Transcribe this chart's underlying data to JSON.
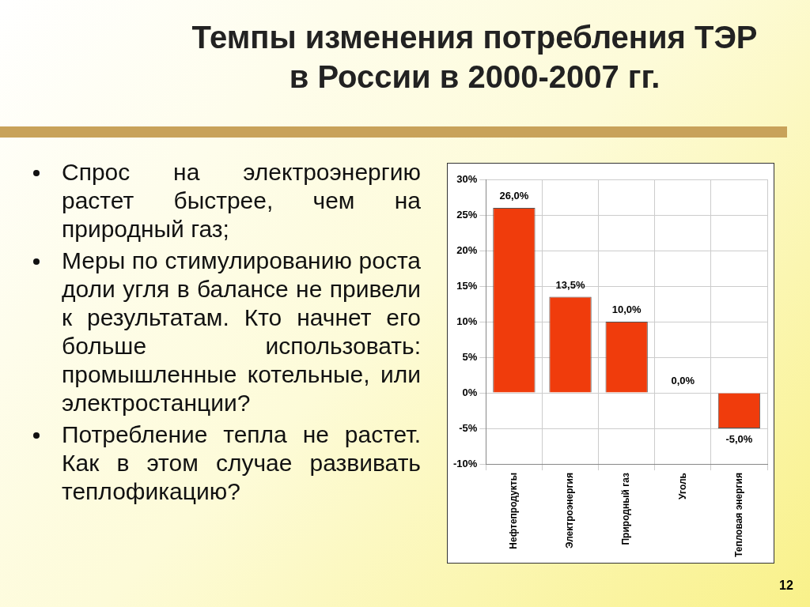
{
  "chart_data": {
    "type": "bar",
    "title": "Темпы изменения потребления ТЭР в России в 2000-2007 гг.",
    "categories": [
      "Нефтепродукты",
      "Электроэнергия",
      "Природный газ",
      "Уголь",
      "Тепловая энергия"
    ],
    "values": [
      26.0,
      13.5,
      10.0,
      0.0,
      -5.0
    ],
    "value_labels": [
      "26,0%",
      "13,5%",
      "10,0%",
      "0,0%",
      "-5,0%"
    ],
    "color": "#f03c0c",
    "ylim": [
      -10,
      30
    ],
    "yticks": [
      {
        "value": -10,
        "label": "-10%"
      },
      {
        "value": -5,
        "label": "-5%"
      },
      {
        "value": 0,
        "label": "0%"
      },
      {
        "value": 5,
        "label": "5%"
      },
      {
        "value": 10,
        "label": "10%"
      },
      {
        "value": 15,
        "label": "15%"
      },
      {
        "value": 20,
        "label": "20%"
      },
      {
        "value": 25,
        "label": "25%"
      },
      {
        "value": 30,
        "label": "30%"
      }
    ],
    "grid": true,
    "annotations": [
      "Спрос на электроэнергию растет быстрее, чем на природный газ;",
      "Меры по стимулированию роста доли угля в балансе не привели к результатам. Кто начнет его больше использовать: промышленные котельные, или электростанции?",
      "Потребление тепла не растет. Как в этом случае развивать теплофикацию?",
      "12"
    ]
  }
}
